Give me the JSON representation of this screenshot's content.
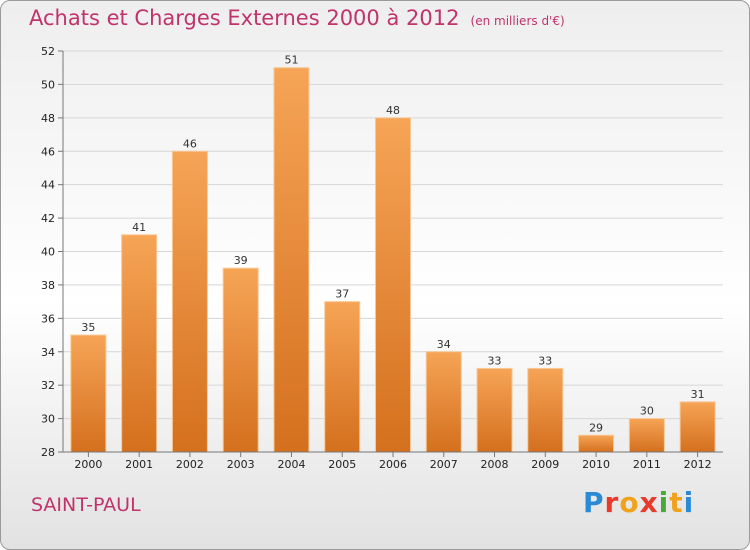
{
  "header": {
    "title": "Achats et Charges Externes 2000 à 2012",
    "subtitle": "(en milliers d'€)"
  },
  "region": "SAINT-PAUL",
  "logo": {
    "letters": [
      "P",
      "r",
      "o",
      "x",
      "i",
      "t",
      "i"
    ],
    "colors": [
      "#2a8ad6",
      "#e83a2a",
      "#f0a21c",
      "#e83a2a",
      "#4aa83a",
      "#f0a21c",
      "#2a8ad6"
    ]
  },
  "colors": {
    "bar_top": "#f6a456",
    "bar_bottom": "#d4701e",
    "accent": "#c0336b"
  },
  "chart_data": {
    "type": "bar",
    "categories": [
      "2000",
      "2001",
      "2002",
      "2003",
      "2004",
      "2005",
      "2006",
      "2007",
      "2008",
      "2009",
      "2010",
      "2011",
      "2012"
    ],
    "values": [
      35,
      41,
      46,
      39,
      51,
      37,
      48,
      34,
      33,
      33,
      29,
      30,
      31
    ],
    "ylim": [
      28,
      52
    ],
    "yticks": [
      28,
      30,
      32,
      34,
      36,
      38,
      40,
      42,
      44,
      46,
      48,
      50,
      52
    ],
    "grid": true
  }
}
